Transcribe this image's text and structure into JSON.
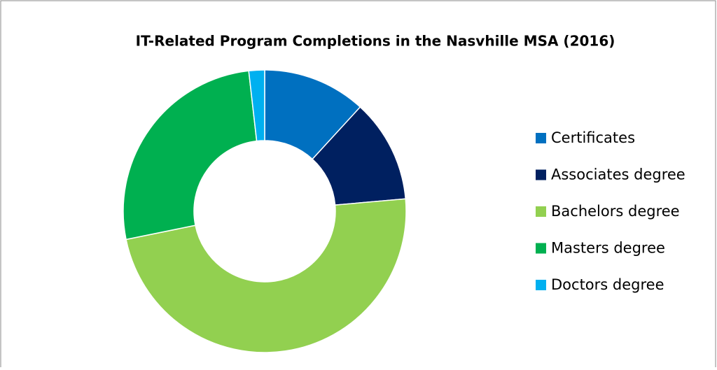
{
  "chart_data": {
    "type": "pie",
    "title": "IT-Related Program Completions in the Nasvhille MSA (2016)",
    "categories": [
      "Certificates",
      "Associates degree",
      "Bachelors degree",
      "Masters degree",
      "Doctors degree"
    ],
    "values": [
      11.8,
      11.8,
      48.2,
      26.4,
      1.8
    ],
    "colors": [
      "#0070c0",
      "#002060",
      "#92d050",
      "#00b050",
      "#00b0f0"
    ],
    "donut": true,
    "legend": "right"
  }
}
